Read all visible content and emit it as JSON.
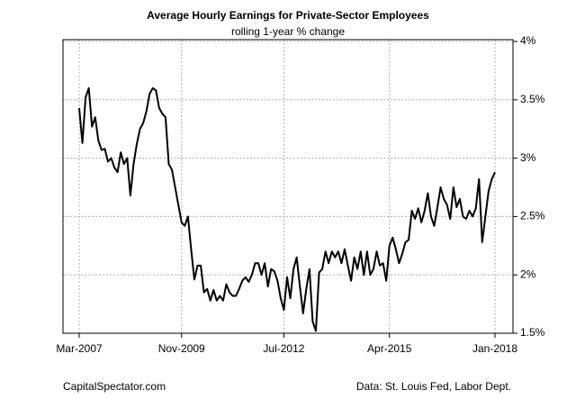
{
  "chart_data": {
    "type": "line",
    "title": "Average Hourly Earnings for Private-Sector Employees",
    "subtitle": "rolling 1-year % change",
    "source_left": "CapitalSpectator.com",
    "source_right": "Data: St. Louis Fed, Labor Dept.",
    "categories": [
      "Mar-2007",
      null,
      null,
      null,
      null,
      null,
      null,
      null,
      null,
      null,
      null,
      null,
      null,
      null,
      null,
      null,
      null,
      null,
      null,
      null,
      null,
      null,
      null,
      null,
      null,
      null,
      null,
      null,
      null,
      null,
      null,
      null,
      "Nov-2009",
      null,
      null,
      null,
      null,
      null,
      null,
      null,
      null,
      null,
      null,
      null,
      null,
      null,
      null,
      null,
      null,
      null,
      null,
      null,
      null,
      null,
      null,
      null,
      null,
      null,
      null,
      null,
      null,
      null,
      null,
      null,
      "Jul-2012",
      null,
      null,
      null,
      null,
      null,
      null,
      null,
      null,
      null,
      null,
      null,
      null,
      null,
      null,
      null,
      null,
      null,
      null,
      null,
      null,
      null,
      null,
      null,
      null,
      null,
      null,
      null,
      null,
      null,
      null,
      null,
      null,
      "Apr-2015",
      null,
      null,
      null,
      null,
      null,
      null,
      null,
      null,
      null,
      null,
      null,
      null,
      null,
      null,
      null,
      null,
      null,
      null,
      null,
      null,
      null,
      null,
      null,
      null,
      null,
      null,
      null,
      null,
      null,
      null,
      null,
      null,
      "Jan-2018"
    ],
    "values": [
      3.43,
      3.13,
      3.52,
      3.6,
      3.27,
      3.35,
      3.15,
      3.07,
      3.08,
      2.97,
      3.0,
      2.92,
      2.88,
      3.05,
      2.95,
      3.0,
      2.68,
      2.95,
      3.12,
      3.25,
      3.3,
      3.4,
      3.55,
      3.6,
      3.58,
      3.43,
      3.38,
      3.35,
      2.95,
      2.9,
      2.75,
      2.6,
      2.45,
      2.42,
      2.5,
      2.22,
      1.96,
      2.08,
      2.08,
      1.85,
      1.88,
      1.78,
      1.87,
      1.78,
      1.82,
      1.78,
      1.92,
      1.85,
      1.82,
      1.82,
      1.88,
      1.95,
      1.98,
      1.94,
      2.0,
      2.1,
      2.1,
      2.0,
      2.1,
      1.9,
      2.05,
      2.03,
      1.95,
      1.8,
      1.7,
      1.98,
      1.8,
      2.05,
      2.15,
      1.9,
      1.67,
      1.88,
      2.05,
      1.6,
      1.52,
      2.02,
      2.05,
      2.2,
      2.1,
      2.2,
      2.15,
      2.2,
      2.1,
      2.22,
      2.08,
      1.95,
      2.15,
      2.05,
      2.2,
      2.0,
      2.2,
      2.0,
      2.05,
      2.2,
      2.08,
      2.1,
      1.95,
      2.25,
      2.32,
      2.22,
      2.1,
      2.18,
      2.28,
      2.3,
      2.55,
      2.48,
      2.57,
      2.45,
      2.55,
      2.7,
      2.5,
      2.42,
      2.58,
      2.75,
      2.65,
      2.6,
      2.48,
      2.75,
      2.58,
      2.65,
      2.5,
      2.48,
      2.55,
      2.5,
      2.57,
      2.82,
      2.28,
      2.5,
      2.72,
      2.82,
      2.88
    ],
    "color": "#000000",
    "ylim": [
      1.5,
      4
    ],
    "yticks": [
      {
        "value": 1.5,
        "label": "1.5%"
      },
      {
        "value": 2,
        "label": "2%"
      },
      {
        "value": 2.5,
        "label": "2.5%"
      },
      {
        "value": 3,
        "label": "3%"
      },
      {
        "value": 3.5,
        "label": "3.5%"
      },
      {
        "value": 4,
        "label": "4%"
      }
    ],
    "grid": true
  }
}
